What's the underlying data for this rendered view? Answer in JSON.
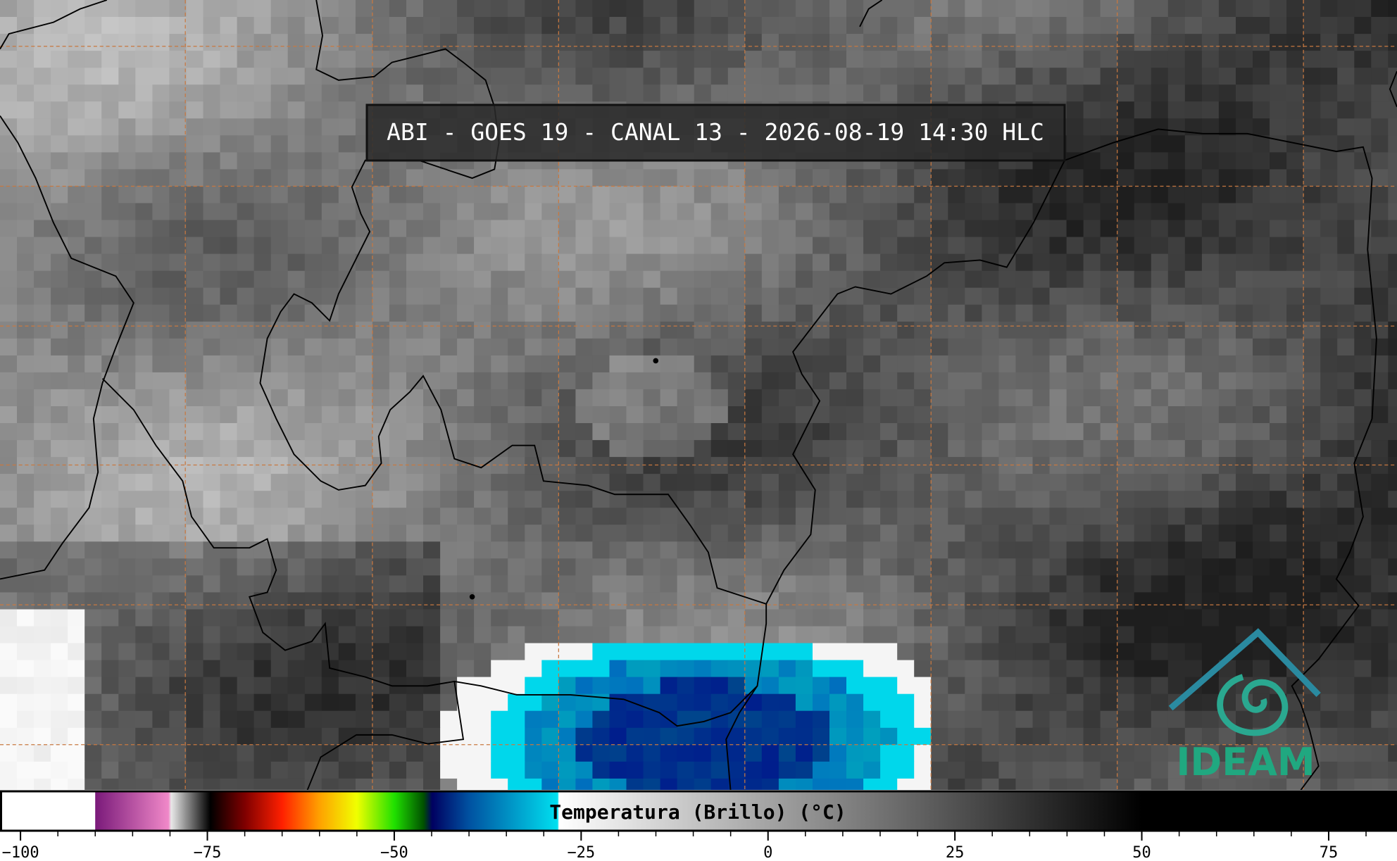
{
  "header": {
    "title": "ABI - GOES 19 - CANAL 13 - 2026-08-19 14:30 HLC"
  },
  "colorbar": {
    "label": "Temperatura (Brillo) (°C)",
    "vlim": [
      -102.6,
      84
    ],
    "ticks": [
      {
        "value": -100,
        "label": "−100"
      },
      {
        "value": -75,
        "label": "−75"
      },
      {
        "value": -50,
        "label": "−50"
      },
      {
        "value": -25,
        "label": "−25"
      },
      0,
      25,
      50,
      75
    ]
  },
  "logo": {
    "text": "IDEAM"
  }
}
